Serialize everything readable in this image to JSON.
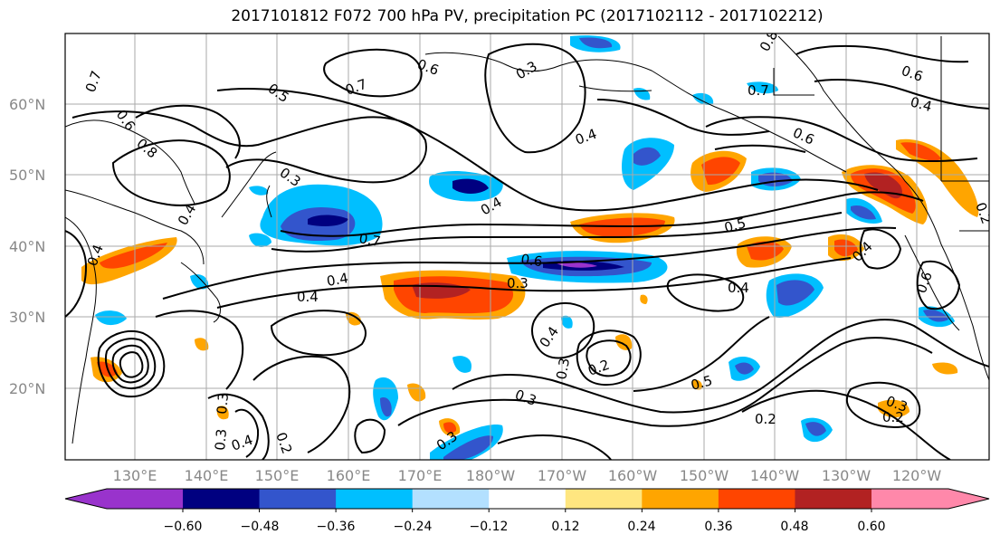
{
  "title": "2017101812 F072 700 hPa PV, precipitation PC (2017102112 - 2017102212)",
  "map": {
    "lat_labels": [
      "60°N",
      "50°N",
      "40°N",
      "30°N",
      "20°N"
    ],
    "lon_labels": [
      "130°E",
      "140°E",
      "150°E",
      "160°E",
      "170°E",
      "180°W",
      "170°W",
      "160°W",
      "150°W",
      "140°W",
      "130°W",
      "120°W"
    ],
    "contour_labels": [
      "0.7",
      "0.6",
      "0.8",
      "0.5",
      "0.3",
      "0.4",
      "0.6",
      "0.7",
      "0.3",
      "0.4",
      "0.8",
      "0.7",
      "0.6",
      "0.4",
      "0.6",
      "0.5",
      "0.4",
      "0.7",
      "0.6",
      "0.4",
      "0.3",
      "0.4",
      "0.4",
      "0.4",
      "0.4",
      "0.3",
      "0.2",
      "0.5",
      "0.3",
      "0.2",
      "0.3",
      "0.2",
      "0.4",
      "0.3",
      "0.3",
      "0.2",
      "0.3",
      "0.2",
      "0.6",
      "0.4"
    ]
  },
  "colorbar": {
    "ticks": [
      "−0.60",
      "−0.48",
      "−0.36",
      "−0.24",
      "−0.12",
      "0.12",
      "0.24",
      "0.36",
      "0.48",
      "0.60"
    ],
    "colors": [
      "#9933cc",
      "#000080",
      "#3355cc",
      "#00bfff",
      "#b3e0ff",
      "#ffffff",
      "#ffe680",
      "#ffa500",
      "#ff4500",
      "#b22222",
      "#ff88aa"
    ]
  }
}
